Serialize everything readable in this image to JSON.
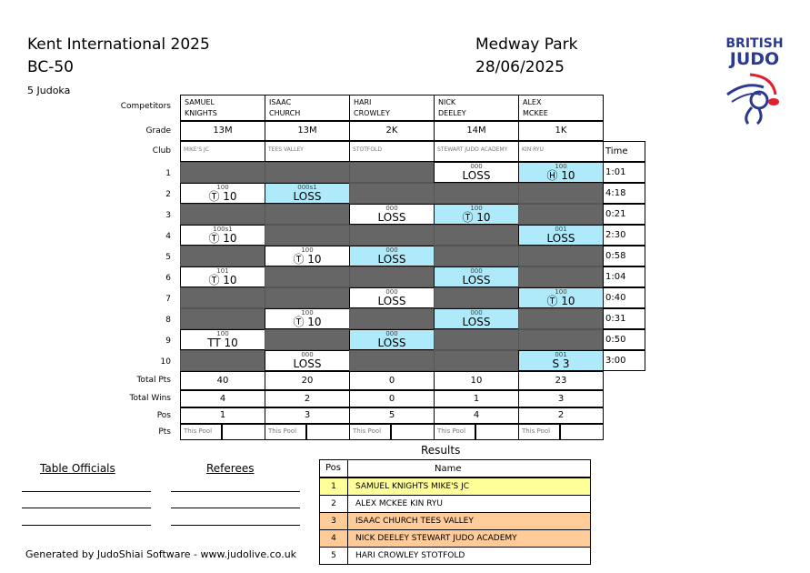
{
  "header": {
    "event": "Kent International 2025",
    "category": "BC-50",
    "count": "5 Judoka",
    "venue": "Medway Park",
    "date": "28/06/2025",
    "logo_text": [
      "BRITISH",
      "JUDO"
    ]
  },
  "labels": {
    "competitors": "Competitors",
    "grade": "Grade",
    "club": "Club",
    "time": "Time",
    "total_pts": "Total Pts",
    "total_wins": "Total Wins",
    "pos": "Pos",
    "pts": "Pts",
    "this_pool": "This Pool"
  },
  "competitors": [
    {
      "name": "SAMUEL KNIGHTS",
      "first": "SAMUEL",
      "last": "KNIGHTS",
      "grade": "13M",
      "club": "MIKE'S JC",
      "total_pts": "40",
      "total_wins": "4",
      "pos": "1"
    },
    {
      "name": "ISAAC CHURCH",
      "first": "ISAAC",
      "last": "CHURCH",
      "grade": "13M",
      "club": "TEES VALLEY",
      "total_pts": "20",
      "total_wins": "2",
      "pos": "3"
    },
    {
      "name": "HARI CROWLEY",
      "first": "HARI",
      "last": "CROWLEY",
      "grade": "2K",
      "club": "STOTFOLD",
      "total_pts": "0",
      "total_wins": "0",
      "pos": "5"
    },
    {
      "name": "NICK DEELEY",
      "first": "NICK",
      "last": "DEELEY",
      "grade": "14M",
      "club": "STEWART JUDO ACADEMY",
      "total_pts": "10",
      "total_wins": "1",
      "pos": "4"
    },
    {
      "name": "ALEX MCKEE",
      "first": "ALEX",
      "last": "MCKEE",
      "grade": "1K",
      "club": "KIN RYU",
      "total_pts": "23",
      "total_wins": "3",
      "pos": "2"
    }
  ],
  "matches": [
    {
      "no": "1",
      "time": "1:01",
      "cells": {
        "3": {
          "score": "000",
          "result": "LOSS",
          "color": "white"
        },
        "4": {
          "score": "100",
          "result": "Ⓗ 10",
          "color": "blue"
        }
      }
    },
    {
      "no": "2",
      "time": "4:18",
      "cells": {
        "0": {
          "score": "100",
          "result": "Ⓣ 10",
          "color": "white"
        },
        "1": {
          "score": "000s1",
          "result": "LOSS",
          "color": "blue"
        }
      }
    },
    {
      "no": "3",
      "time": "0:21",
      "cells": {
        "2": {
          "score": "000",
          "result": "LOSS",
          "color": "white"
        },
        "3": {
          "score": "100",
          "result": "Ⓣ 10",
          "color": "blue"
        }
      }
    },
    {
      "no": "4",
      "time": "2:30",
      "cells": {
        "0": {
          "score": "100s1",
          "result": "Ⓣ 10",
          "color": "white"
        },
        "4": {
          "score": "001",
          "result": "LOSS",
          "color": "blue"
        }
      }
    },
    {
      "no": "5",
      "time": "0:58",
      "cells": {
        "1": {
          "score": "100",
          "result": "Ⓣ 10",
          "color": "white"
        },
        "2": {
          "score": "000",
          "result": "LOSS",
          "color": "blue"
        }
      }
    },
    {
      "no": "6",
      "time": "1:04",
      "cells": {
        "0": {
          "score": "101",
          "result": "Ⓣ 10",
          "color": "white"
        },
        "3": {
          "score": "000",
          "result": "LOSS",
          "color": "blue"
        }
      }
    },
    {
      "no": "7",
      "time": "0:40",
      "cells": {
        "2": {
          "score": "000",
          "result": "LOSS",
          "color": "white"
        },
        "4": {
          "score": "100",
          "result": "Ⓣ 10",
          "color": "blue"
        }
      }
    },
    {
      "no": "8",
      "time": "0:31",
      "cells": {
        "1": {
          "score": "100",
          "result": "Ⓣ 10",
          "color": "white"
        },
        "3": {
          "score": "000",
          "result": "LOSS",
          "color": "blue"
        }
      }
    },
    {
      "no": "9",
      "time": "0:50",
      "cells": {
        "0": {
          "score": "100",
          "result": "TT 10",
          "color": "white"
        },
        "2": {
          "score": "000",
          "result": "LOSS",
          "color": "blue"
        }
      }
    },
    {
      "no": "10",
      "time": "3:00",
      "cells": {
        "1": {
          "score": "000",
          "result": "LOSS",
          "color": "white"
        },
        "4": {
          "score": "001",
          "result": "S 3",
          "color": "blue"
        }
      }
    }
  ],
  "officials": {
    "table": "Table Officials",
    "referees": "Referees"
  },
  "results": {
    "title": "Results",
    "col_pos": "Pos",
    "col_name": "Name",
    "rows": [
      {
        "pos": "1",
        "name": "SAMUEL KNIGHTS MIKE'S JC",
        "color": "#ffff99"
      },
      {
        "pos": "2",
        "name": "ALEX MCKEE KIN RYU",
        "color": "#ffffff"
      },
      {
        "pos": "3",
        "name": "ISAAC CHURCH TEES VALLEY",
        "color": "#ffcc99"
      },
      {
        "pos": "4",
        "name": "NICK DEELEY STEWART JUDO ACADEMY",
        "color": "#ffcc99"
      },
      {
        "pos": "5",
        "name": "HARI CROWLEY STOTFOLD",
        "color": "#ffffff"
      }
    ]
  },
  "footer": "Generated by JudoShiai Software - www.judolive.co.uk",
  "colors": {
    "blue": "#aeeaf9",
    "grey": "#666666",
    "brand_blue": "#2b3a8c",
    "brand_red": "#e31e2d"
  }
}
